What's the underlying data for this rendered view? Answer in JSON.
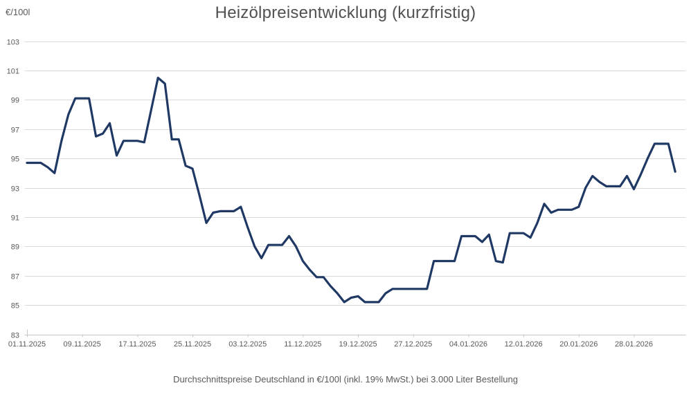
{
  "chart_data": {
    "type": "line",
    "title": "Heizölpreisentwicklung (kurzfristig)",
    "subtitle": "Durchschnittspreise Deutschland in €/100l (inkl. 19% MwSt.) bei 3.000 Liter Bestellung",
    "y_axis_unit": "€/100l",
    "ylim": [
      83,
      103
    ],
    "y_ticks": [
      103,
      101,
      99,
      97,
      95,
      93,
      91,
      89,
      87,
      85,
      83
    ],
    "x_tick_labels": [
      "01.11.2025",
      "09.11.2025",
      "17.11.2025",
      "25.11.2025",
      "03.12.2025",
      "11.12.2025",
      "19.12.2025",
      "27.12.2025",
      "04.01.2026",
      "12.01.2026",
      "20.01.2026",
      "28.01.2026"
    ],
    "points_per_x_tick": 8,
    "point_interval": "daily",
    "grid": "horizontal",
    "legend_position": "none",
    "line_color": "#1f3864",
    "grid_color": "#d9d9d9",
    "text_color": "#595959",
    "series": [
      {
        "name": "Heizölpreis €/100l",
        "values": [
          94.7,
          94.7,
          94.7,
          94.4,
          94.0,
          96.2,
          98.0,
          99.1,
          99.1,
          99.1,
          96.5,
          96.7,
          97.4,
          95.2,
          96.2,
          96.2,
          96.2,
          96.1,
          98.3,
          100.5,
          100.1,
          96.3,
          96.3,
          94.5,
          94.3,
          92.5,
          90.6,
          91.3,
          91.4,
          91.4,
          91.4,
          91.7,
          90.3,
          89.0,
          88.2,
          89.1,
          89.1,
          89.1,
          89.7,
          89.0,
          88.0,
          87.4,
          86.9,
          86.9,
          86.3,
          85.8,
          85.2,
          85.5,
          85.6,
          85.2,
          85.2,
          85.2,
          85.8,
          86.1,
          86.1,
          86.1,
          86.1,
          86.1,
          86.1,
          88.0,
          88.0,
          88.0,
          88.0,
          89.7,
          89.7,
          89.7,
          89.3,
          89.8,
          88.0,
          87.9,
          89.9,
          89.9,
          89.9,
          89.6,
          90.6,
          91.9,
          91.3,
          91.5,
          91.5,
          91.5,
          91.7,
          93.0,
          93.8,
          93.4,
          93.1,
          93.1,
          93.1,
          93.8,
          92.9,
          93.9,
          95.0,
          96.0,
          96.0,
          96.0,
          94.1
        ]
      }
    ]
  }
}
